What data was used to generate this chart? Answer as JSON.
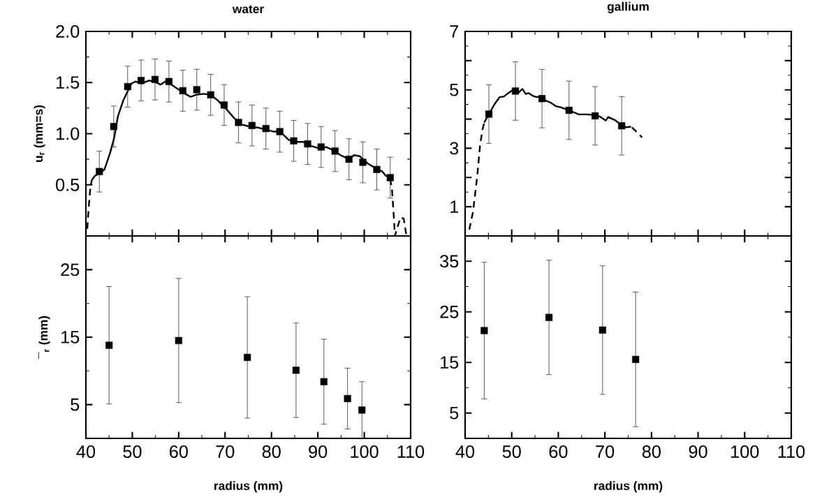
{
  "chart_data": [
    {
      "type": "line",
      "title": "water",
      "ylabel": "u$_{r}$ (mm=s)",
      "xlim": [
        40,
        110
      ],
      "ylim": [
        0,
        2
      ],
      "tick_labels": "y",
      "xticks": [
        40,
        50,
        60,
        70,
        80,
        90,
        100,
        110
      ],
      "yticks": [
        0.5,
        {
          "value": 1,
          "label": "1.0"
        },
        1.5,
        {
          "value": 2,
          "label": "2.0"
        }
      ],
      "series": [
        {
          "color": "#000000",
          "line_style": "solid",
          "marker": "none",
          "x": [
            41.3,
            42.0,
            42.9,
            44.0,
            45.2,
            46.1,
            46.9,
            48.1,
            49.8,
            50.7,
            52.0,
            53.6,
            54.7,
            56.1,
            57.1,
            58.1,
            59.7,
            61.4,
            62.6,
            63.7,
            65.4,
            66.9,
            68.3,
            70.1,
            71.8,
            73.5,
            75.3,
            77.0,
            78.8,
            80.5,
            81.9,
            83.7,
            85.1,
            86.8,
            88.6,
            90.6,
            91.8,
            93.2,
            94.9,
            96.7,
            97.8,
            99.0,
            100.7,
            102.5,
            103.9,
            104.8
          ],
          "values": [
            0.55,
            0.59,
            0.61,
            0.65,
            0.81,
            0.96,
            1.17,
            1.33,
            1.49,
            1.51,
            1.49,
            1.52,
            1.51,
            1.48,
            1.51,
            1.49,
            1.44,
            1.39,
            1.36,
            1.38,
            1.39,
            1.38,
            1.33,
            1.25,
            1.16,
            1.09,
            1.07,
            1.06,
            1.04,
            1.02,
            1.02,
            0.94,
            0.92,
            0.92,
            0.88,
            0.85,
            0.87,
            0.84,
            0.79,
            0.75,
            0.79,
            0.78,
            0.71,
            0.66,
            0.63,
            0.58
          ]
        },
        {
          "color": "#000000",
          "line_style": "dashed",
          "marker": "none",
          "x": [
            40.3,
            40.6,
            41.0,
            41.3
          ],
          "values": [
            0.07,
            0.28,
            0.49,
            0.55
          ]
        },
        {
          "color": "#000000",
          "line_style": "dashed",
          "marker": "none",
          "x": [
            105.6,
            106.0,
            106.4,
            106.6,
            107.8,
            108.5,
            109.1
          ],
          "values": [
            0.56,
            0.44,
            0.17,
            0.0,
            0.18,
            0.17,
            0.0
          ]
        },
        {
          "type": "scatter",
          "color": "#000000",
          "marker": "square",
          "x": [
            42.9,
            46.0,
            49.0,
            51.9,
            54.9,
            57.9,
            60.9,
            63.9,
            66.9,
            69.8,
            72.9,
            75.8,
            78.8,
            81.8,
            84.8,
            87.8,
            90.7,
            93.7,
            96.7,
            99.7,
            102.7,
            105.6
          ],
          "values": [
            0.63,
            1.07,
            1.46,
            1.52,
            1.53,
            1.51,
            1.42,
            1.43,
            1.38,
            1.28,
            1.11,
            1.08,
            1.05,
            1.02,
            0.93,
            0.9,
            0.87,
            0.83,
            0.75,
            0.72,
            0.65,
            0.57
          ],
          "errors": [
            0.2,
            0.2,
            0.2,
            0.2,
            0.2,
            0.2,
            0.2,
            0.2,
            0.2,
            0.2,
            0.2,
            0.2,
            0.2,
            0.2,
            0.2,
            0.2,
            0.2,
            0.2,
            0.2,
            0.2,
            0.2,
            0.2
          ]
        }
      ]
    },
    {
      "type": "line",
      "title": "gallium",
      "xlim": [
        40,
        110
      ],
      "ylim": [
        0,
        7
      ],
      "tick_labels": "y",
      "xticks": [
        40,
        50,
        60,
        70,
        80,
        90,
        100,
        110
      ],
      "yticks": [
        1,
        {
          "value": 2,
          "label": null
        },
        3,
        {
          "value": 4,
          "label": null
        },
        5,
        {
          "value": 6,
          "label": null
        },
        7
      ],
      "series": [
        {
          "color": "#000000",
          "line_style": "solid",
          "marker": "none",
          "x": [
            44.1,
            45.1,
            46.4,
            47.4,
            48.3,
            49.1,
            50.0,
            50.8,
            51.5,
            52.3,
            53.0,
            53.6,
            54.6,
            55.4,
            56.5,
            57.3,
            58.4,
            59.5,
            60.6,
            62.3,
            64.4,
            66.1,
            67.9,
            69.1,
            70.2,
            70.7,
            72.1,
            73.6,
            74.6,
            75.6
          ],
          "values": [
            3.88,
            4.17,
            4.53,
            4.75,
            4.77,
            4.87,
            4.97,
            4.99,
            4.91,
            5.03,
            4.86,
            4.89,
            4.79,
            4.75,
            4.79,
            4.63,
            4.56,
            4.44,
            4.4,
            4.3,
            4.16,
            4.16,
            4.14,
            4.07,
            3.95,
            4.07,
            3.97,
            3.79,
            3.72,
            3.74
          ]
        },
        {
          "color": "#000000",
          "line_style": "dashed",
          "marker": "none",
          "x": [
            40.9,
            41.7,
            42.6,
            43.2,
            43.7,
            44.1
          ],
          "values": [
            0.22,
            0.83,
            2.05,
            3.09,
            3.62,
            3.88
          ]
        },
        {
          "color": "#000000",
          "line_style": "dashed",
          "marker": "none",
          "x": [
            75.8,
            78.0
          ],
          "values": [
            3.72,
            3.37
          ]
        },
        {
          "type": "scatter",
          "color": "#000000",
          "marker": "square",
          "x": [
            45.1,
            50.8,
            56.5,
            62.3,
            67.9,
            73.6
          ],
          "values": [
            4.17,
            4.96,
            4.7,
            4.3,
            4.11,
            3.77
          ],
          "errors": [
            1.0,
            1.0,
            1.0,
            1.0,
            1.0,
            1.0
          ]
        }
      ]
    },
    {
      "type": "scatter",
      "xlabel": "radius (mm)",
      "ylabel": "¯$_{r}$ (mm)",
      "xlim": [
        40,
        110
      ],
      "ylim": [
        0,
        30
      ],
      "xticks": [
        40,
        50,
        60,
        70,
        80,
        90,
        100,
        110
      ],
      "yticks": [
        5,
        15,
        25
      ],
      "series": [
        {
          "color": "#000000",
          "marker": "square",
          "x": [
            45.0,
            60.0,
            74.8,
            85.3,
            91.3,
            96.4,
            99.5
          ],
          "values": [
            13.8,
            14.5,
            12.0,
            10.1,
            8.4,
            5.9,
            4.2
          ],
          "errors": [
            8.7,
            9.2,
            9.0,
            7.0,
            6.3,
            4.5,
            4.2
          ]
        }
      ]
    },
    {
      "type": "scatter",
      "xlabel": "radius (mm)",
      "xlim": [
        40,
        110
      ],
      "ylim": [
        0,
        40
      ],
      "xticks": [
        40,
        50,
        60,
        70,
        80,
        90,
        100,
        110
      ],
      "yticks": [
        5,
        15,
        25,
        35
      ],
      "series": [
        {
          "color": "#000000",
          "marker": "square",
          "x": [
            44.1,
            58.0,
            69.5,
            76.6
          ],
          "values": [
            21.3,
            23.9,
            21.4,
            15.6
          ],
          "errors": [
            13.5,
            11.3,
            12.7,
            13.3
          ]
        }
      ]
    }
  ]
}
